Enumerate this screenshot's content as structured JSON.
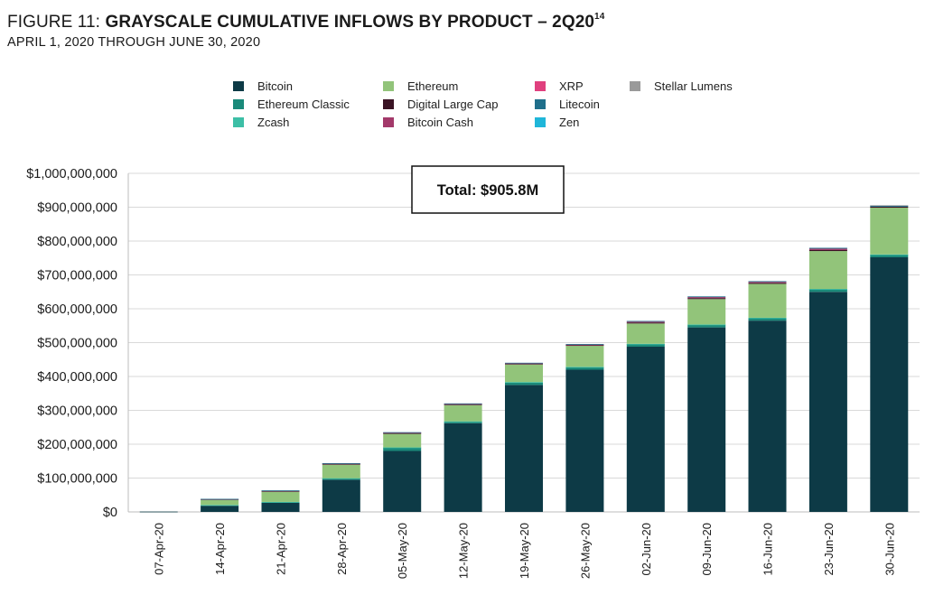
{
  "header": {
    "title_prefix": "FIGURE 11: ",
    "title_main": "GRAYSCALE CUMULATIVE INFLOWS BY PRODUCT – 2Q20",
    "title_sup": "14",
    "subtitle": "APRIL 1, 2020 THROUGH JUNE 30, 2020"
  },
  "chart_data": {
    "type": "bar",
    "stacked": true,
    "title": "GRAYSCALE CUMULATIVE INFLOWS BY PRODUCT – 2Q20",
    "subtitle": "APRIL 1, 2020 THROUGH JUNE 30, 2020",
    "categories": [
      "07-Apr-20",
      "14-Apr-20",
      "21-Apr-20",
      "28-Apr-20",
      "05-May-20",
      "12-May-20",
      "19-May-20",
      "26-May-20",
      "02-Jun-20",
      "09-Jun-20",
      "16-Jun-20",
      "23-Jun-20",
      "30-Jun-20"
    ],
    "ylim": [
      0,
      1000000000
    ],
    "yticks": [
      0,
      100000000,
      200000000,
      300000000,
      400000000,
      500000000,
      600000000,
      700000000,
      800000000,
      900000000,
      1000000000
    ],
    "ytick_labels": [
      "$0",
      "$100,000,000",
      "$200,000,000",
      "$300,000,000",
      "$400,000,000",
      "$500,000,000",
      "$600,000,000",
      "$700,000,000",
      "$800,000,000",
      "$900,000,000",
      "$1,000,000,000"
    ],
    "grid": true,
    "legend_position": "top",
    "series": [
      {
        "name": "Bitcoin",
        "color": "#0d3a46",
        "values": [
          1000000,
          18000000,
          27000000,
          95000000,
          180000000,
          262000000,
          375000000,
          420000000,
          488000000,
          545000000,
          565000000,
          650000000,
          752000000
        ]
      },
      {
        "name": "Ethereum Classic",
        "color": "#1a8a7a",
        "values": [
          0,
          2000000,
          2000000,
          4000000,
          10000000,
          5000000,
          8000000,
          8000000,
          8000000,
          8000000,
          8000000,
          8000000,
          8000000
        ]
      },
      {
        "name": "Zcash",
        "color": "#3dbfa6",
        "values": [
          0,
          500000,
          500000,
          500000,
          500000,
          500000,
          500000,
          500000,
          500000,
          500000,
          500000,
          500000,
          500000
        ]
      },
      {
        "name": "Ethereum",
        "color": "#92c47a",
        "values": [
          0,
          15000000,
          30000000,
          40000000,
          40000000,
          48000000,
          52000000,
          62000000,
          60000000,
          75000000,
          100000000,
          112000000,
          138000000
        ]
      },
      {
        "name": "Digital Large Cap",
        "color": "#3a1424",
        "values": [
          0,
          2000000,
          3000000,
          3000000,
          3000000,
          3000000,
          3000000,
          3000000,
          3000000,
          3000000,
          3000000,
          3000000,
          3000000
        ]
      },
      {
        "name": "Bitcoin Cash",
        "color": "#a3396a",
        "values": [
          0,
          500000,
          500000,
          500000,
          500000,
          500000,
          500000,
          500000,
          2500000,
          3000000,
          3000000,
          4000000,
          0
        ]
      },
      {
        "name": "XRP",
        "color": "#e0407e",
        "values": [
          0,
          0,
          0,
          0,
          0,
          0,
          0,
          0,
          0,
          0,
          0,
          0,
          0
        ]
      },
      {
        "name": "Litecoin",
        "color": "#1f6f8b",
        "values": [
          0,
          500000,
          500000,
          1000000,
          1500000,
          1500000,
          1500000,
          2000000,
          2000000,
          2000000,
          2000000,
          2500000,
          3300000
        ]
      },
      {
        "name": "Zen",
        "color": "#1fb6d9",
        "values": [
          0,
          0,
          0,
          0,
          0,
          0,
          0,
          0,
          0,
          0,
          0,
          0,
          0
        ]
      },
      {
        "name": "Stellar Lumens",
        "color": "#9a9a9a",
        "values": [
          0,
          0,
          0,
          0,
          0,
          0,
          0,
          0,
          0,
          0,
          0,
          0,
          1000000
        ]
      }
    ],
    "legend_order": [
      "Bitcoin",
      "Ethereum",
      "XRP",
      "Stellar Lumens",
      "Ethereum Classic",
      "Digital Large Cap",
      "Litecoin",
      "Zcash",
      "Bitcoin Cash",
      "Zen"
    ],
    "annotation": {
      "text": "Total: $905.8M"
    }
  }
}
